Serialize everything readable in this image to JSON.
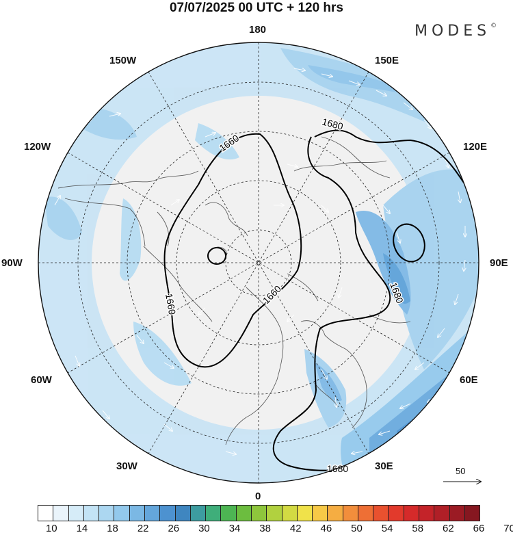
{
  "title": "07/07/2025  00 UTC  + 120 hrs",
  "brand": "MODES",
  "brand_mark": "©",
  "longitude_labels": {
    "top": "180",
    "top_left": "150W",
    "top_right": "150E",
    "upper_left": "120W",
    "upper_right": "120E",
    "left": "90W",
    "right": "90E",
    "lower_left": "60W",
    "lower_right": "60E",
    "bottom_left": "30W",
    "bottom_right": "30E",
    "bottom": "0"
  },
  "contour_labels": {
    "c1": "1660",
    "c2": "1680",
    "c3": "1660",
    "c4": "1660",
    "c5": "1680",
    "c6": "1680"
  },
  "vector_reference": {
    "label": "50"
  },
  "colorbar": {
    "colors": [
      "#ffffff",
      "#eaf4fb",
      "#d6ecf8",
      "#c3e3f5",
      "#acd7f1",
      "#93c9ec",
      "#7bb8e4",
      "#64a6db",
      "#4d92d0",
      "#3f86c0",
      "#3d9ca0",
      "#3fae7a",
      "#4db553",
      "#6cbd3f",
      "#8ec63c",
      "#b1d13f",
      "#d3da43",
      "#f0e24a",
      "#f7c947",
      "#f5ad42",
      "#f28e3c",
      "#ee6f35",
      "#e9512f",
      "#e23a2c",
      "#d52a2a",
      "#c42329",
      "#b01f27",
      "#9b1b24",
      "#861720"
    ],
    "tick_labels": [
      "10",
      "14",
      "18",
      "22",
      "26",
      "30",
      "34",
      "38",
      "42",
      "46",
      "50",
      "54",
      "58",
      "62",
      "66",
      "70"
    ]
  },
  "colors": {
    "land": "#f1f1f1",
    "coast": "#444444",
    "contour": "#000000",
    "grid": "#222222"
  }
}
